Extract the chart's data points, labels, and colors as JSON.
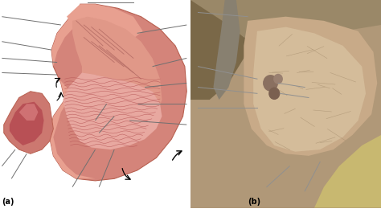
{
  "figure_width": 4.74,
  "figure_height": 2.75,
  "dpi": 100,
  "bg": "#ffffff",
  "label_a": "(a)",
  "label_b": "(b)",
  "stomach_outer": "#d4847a",
  "stomach_outer_edge": "#b86050",
  "stomach_wall": "#e8a090",
  "stomach_fundus": "#cc7870",
  "mucosa_bg": "#d07878",
  "mucosa_light": "#e8a8a0",
  "rugae_color": "#b85858",
  "pylorus_outer": "#cc7870",
  "pylorus_inner": "#a04848",
  "muscle_line": "#b87068",
  "annot_line": "#707070",
  "annot_lw": 0.7,
  "photo_bg": "#b09878",
  "photo_dark": "#6a5840",
  "photo_mid": "#9a8060",
  "photo_light": "#c8aa88",
  "photo_very_light": "#d4bc9a",
  "photo_line": "#a09080"
}
